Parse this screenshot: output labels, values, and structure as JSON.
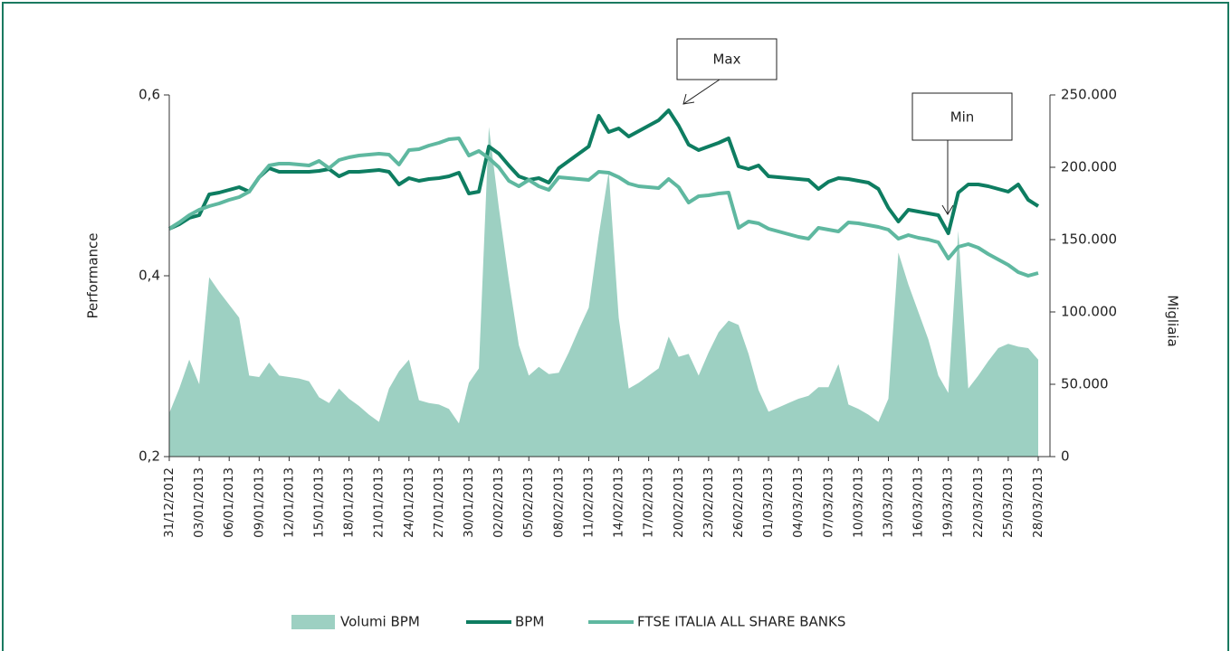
{
  "chart_data": {
    "type": "combo",
    "y_label": "Performance",
    "y2_label": "Migliaia",
    "annotations": [
      {
        "text": "Max"
      },
      {
        "text": "Min"
      }
    ],
    "categories": [
      "31/12/2012",
      null,
      null,
      "03/01/2013",
      null,
      null,
      "06/01/2013",
      null,
      null,
      "09/01/2013",
      null,
      null,
      "12/01/2013",
      null,
      null,
      "15/01/2013",
      null,
      null,
      "18/01/2013",
      null,
      null,
      "21/01/2013",
      null,
      null,
      "24/01/2013",
      null,
      null,
      "27/01/2013",
      null,
      null,
      "30/01/2013",
      null,
      null,
      "02/02/2013",
      null,
      null,
      "05/02/2013",
      null,
      null,
      "08/02/2013",
      null,
      null,
      "11/02/2013",
      null,
      null,
      "14/02/2013",
      null,
      null,
      "17/02/2013",
      null,
      null,
      "20/02/2013",
      null,
      null,
      "23/02/2013",
      null,
      null,
      "26/02/2013",
      null,
      null,
      "01/03/2013",
      null,
      null,
      "04/03/2013",
      null,
      null,
      "07/03/2013",
      null,
      null,
      "10/03/2013",
      null,
      null,
      "13/03/2013",
      null,
      null,
      "16/03/2013",
      null,
      null,
      "19/03/2013",
      null,
      null,
      "22/03/2013",
      null,
      null,
      "25/03/2013",
      null,
      null,
      "28/03/2013"
    ],
    "series": [
      {
        "name": "Volumi BPM",
        "kind": "area",
        "axis": "y2",
        "color": "#9dd0c2",
        "values": [
          30000,
          47000,
          67000,
          50000,
          124000,
          114000,
          105000,
          96000,
          56000,
          55000,
          65000,
          56000,
          55000,
          54000,
          52000,
          41000,
          37000,
          47000,
          40000,
          35000,
          29000,
          24000,
          47000,
          59000,
          67000,
          39000,
          37000,
          36000,
          33000,
          23000,
          51000,
          61000,
          228000,
          172000,
          122000,
          77000,
          56000,
          62000,
          57000,
          58000,
          72000,
          88000,
          103000,
          153000,
          197000,
          96000,
          47000,
          51000,
          56000,
          61000,
          83000,
          69000,
          71000,
          56000,
          72000,
          86000,
          94000,
          91000,
          71000,
          46000,
          31000,
          34000,
          37000,
          40000,
          42000,
          48000,
          48000,
          64000,
          36000,
          33000,
          29000,
          24000,
          40000,
          141000,
          119000,
          100000,
          81000,
          56000,
          44000,
          156000,
          47000,
          56000,
          66000,
          75000,
          78000,
          76000,
          75000,
          67000
        ]
      },
      {
        "name": "BPM",
        "kind": "line",
        "color": "#0e7d61",
        "values": [
          0.452,
          0.457,
          0.464,
          0.467,
          0.49,
          0.492,
          0.495,
          0.498,
          0.493,
          0.509,
          0.519,
          0.515,
          0.515,
          0.515,
          0.515,
          0.516,
          0.518,
          0.51,
          0.515,
          0.515,
          0.516,
          0.517,
          0.515,
          0.501,
          0.508,
          0.505,
          0.507,
          0.508,
          0.51,
          0.514,
          0.491,
          0.493,
          0.543,
          0.535,
          0.522,
          0.51,
          0.506,
          0.508,
          0.503,
          0.519,
          0.527,
          0.535,
          0.543,
          0.577,
          0.559,
          0.563,
          0.554,
          0.56,
          0.566,
          0.572,
          0.583,
          0.566,
          0.545,
          0.539,
          0.543,
          0.547,
          0.552,
          0.521,
          0.518,
          0.522,
          0.51,
          0.509,
          0.508,
          0.507,
          0.506,
          0.496,
          0.504,
          0.508,
          0.507,
          0.505,
          0.503,
          0.496,
          0.475,
          0.46,
          0.473,
          0.471,
          0.469,
          0.467,
          0.447,
          0.492,
          0.501,
          0.501,
          0.499,
          0.496,
          0.493,
          0.501,
          0.484,
          0.477
        ]
      },
      {
        "name": "FTSE ITALIA ALL SHARE BANKS",
        "kind": "line",
        "color": "#5fb8a0",
        "values": [
          0.452,
          0.459,
          0.467,
          0.473,
          0.477,
          0.48,
          0.484,
          0.487,
          0.493,
          0.509,
          0.522,
          0.524,
          0.524,
          0.523,
          0.522,
          0.527,
          0.519,
          0.528,
          0.531,
          0.533,
          0.534,
          0.535,
          0.534,
          0.523,
          0.539,
          0.54,
          0.544,
          0.547,
          0.551,
          0.552,
          0.533,
          0.538,
          0.53,
          0.52,
          0.505,
          0.499,
          0.506,
          0.499,
          0.495,
          0.509,
          0.508,
          0.507,
          0.506,
          0.515,
          0.514,
          0.509,
          0.502,
          0.499,
          0.498,
          0.497,
          0.507,
          0.498,
          0.481,
          0.488,
          0.489,
          0.491,
          0.492,
          0.453,
          0.46,
          0.458,
          0.452,
          0.449,
          0.446,
          0.443,
          0.441,
          0.453,
          0.451,
          0.449,
          0.459,
          0.458,
          0.456,
          0.454,
          0.451,
          0.441,
          0.445,
          0.442,
          0.44,
          0.437,
          0.419,
          0.432,
          0.435,
          0.431,
          0.424,
          0.418,
          0.412,
          0.404,
          0.4,
          0.403
        ]
      }
    ],
    "ylim": [
      0.2,
      0.6
    ],
    "yticks": [
      {
        "value": 0.2,
        "label": "0,2"
      },
      {
        "value": 0.4,
        "label": "0,4"
      },
      {
        "value": 0.6,
        "label": "0,6"
      }
    ],
    "y2lim": [
      0,
      250000
    ],
    "y2ticks": [
      0,
      {
        "value": 50000,
        "label": "50.000"
      },
      {
        "value": 100000,
        "label": "100.000"
      },
      {
        "value": 150000,
        "label": "150.000"
      },
      {
        "value": 200000,
        "label": "200.000"
      },
      {
        "value": 250000,
        "label": "250.000"
      }
    ],
    "grid": false,
    "legend": "bottom"
  }
}
